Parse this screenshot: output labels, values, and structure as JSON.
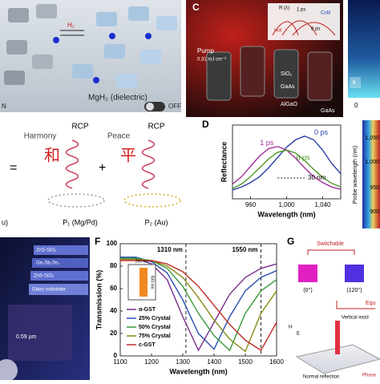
{
  "panels": {
    "a": {
      "state": "MgH₂ (dielectric)",
      "off": "OFF",
      "on": "N",
      "gas": "H₂"
    },
    "b": {
      "rcp1": "RCP",
      "rcp2": "RCP",
      "word1": "Harmony",
      "word2": "Peace",
      "char1": "和",
      "char2": "平",
      "eq": "=",
      "plus": "+",
      "p1": "P₁ (Mg/Pd)",
      "p2": "P₂ (Au)",
      "p0": "u)"
    },
    "c": {
      "label": "C",
      "pump": "Pump",
      "fluence": "0.31 mJ cm⁻²",
      "sio2": "SiO₂",
      "gaas1": "GaAs",
      "algao": "AlGaO",
      "gaas2": "GaAs",
      "t1": "1 ps",
      "t6": "6 ps",
      "hot": "Hot",
      "cold": "Cold",
      "r": "R (λ)"
    },
    "cbar": {
      "k": "k",
      "zero": "0",
      "title": "Probe wavelength (nm)",
      "ticks": [
        "1,050",
        "1,000",
        "950",
        "900"
      ]
    },
    "e": {
      "l1": "ZnS-SiO₂",
      "l2": "Ge₂Sb₂Te₅",
      "l3": "ZnS-SiO₂",
      "l4": "Glass substrate",
      "d": "0.59 μm"
    },
    "g": {
      "label": "G",
      "switch": "Switchable",
      "a0": "(0°)",
      "a120": "(120°)",
      "equ": "Equ",
      "vert": "Vertical incid",
      "normal": "Normal reflection",
      "h": "H",
      "e": "E",
      "phase": "Phase"
    }
  },
  "chart_data": [
    {
      "type": "line",
      "label": "D",
      "xlabel": "Wavelength (nm)",
      "ylabel": "Reflectance",
      "legend": "inline",
      "x": [
        940,
        950,
        960,
        970,
        980,
        990,
        1000,
        1010,
        1020,
        1030,
        1040,
        1050,
        1060
      ],
      "xlim": [
        940,
        1060
      ],
      "ylim": [
        0,
        1
      ],
      "xticks": [
        960,
        {
          "value": 1000,
          "label": "1,000"
        },
        {
          "value": 1040,
          "label": "1,040"
        }
      ],
      "annotation": "30 nm",
      "series": [
        {
          "name": "0 ps",
          "color": "#2b3ea8",
          "values": [
            0.12,
            0.16,
            0.22,
            0.3,
            0.42,
            0.56,
            0.7,
            0.8,
            0.85,
            0.8,
            0.66,
            0.48,
            0.34
          ]
        },
        {
          "name": "1 ps",
          "color": "#a0309a",
          "values": [
            0.2,
            0.3,
            0.44,
            0.58,
            0.68,
            0.71,
            0.66,
            0.55,
            0.42,
            0.3,
            0.22,
            0.16,
            0.13
          ]
        },
        {
          "name": "6 ps",
          "color": "#4e9a2a",
          "values": [
            0.14,
            0.2,
            0.3,
            0.42,
            0.54,
            0.63,
            0.66,
            0.62,
            0.52,
            0.4,
            0.29,
            0.21,
            0.16
          ]
        }
      ]
    },
    {
      "type": "line",
      "label": "F",
      "xlabel": "Wavelength (nm)",
      "ylabel": "Transmission (%)",
      "legend": "lower left",
      "x": [
        1100,
        1150,
        1200,
        1250,
        1300,
        1350,
        1400,
        1450,
        1500,
        1550,
        1600
      ],
      "xlim": [
        1100,
        1600
      ],
      "ylim": [
        0,
        100
      ],
      "xticks": [
        1100,
        1200,
        1300,
        1400,
        1500,
        1600
      ],
      "yticks": [
        0,
        20,
        40,
        60,
        80,
        100
      ],
      "vlines": [
        {
          "value": 1310,
          "label": "1310 nm"
        },
        {
          "value": 1550,
          "label": "1550 nm"
        }
      ],
      "inset_labels": [
        "260 nm",
        "500 nm"
      ],
      "series": [
        {
          "name": "α-GST",
          "color": "#7a2f8f",
          "values": [
            88,
            87,
            82,
            68,
            35,
            5,
            30,
            55,
            70,
            78,
            82
          ]
        },
        {
          "name": "25% Crystal",
          "color": "#2a4fb0",
          "values": [
            88,
            88,
            84,
            74,
            50,
            20,
            6,
            35,
            58,
            70,
            76
          ]
        },
        {
          "name": "50% Crystal",
          "color": "#3a9a3a",
          "values": [
            87,
            87,
            85,
            78,
            62,
            38,
            18,
            5,
            38,
            58,
            68
          ]
        },
        {
          "name": "75% Crystal",
          "color": "#8a8a1a",
          "values": [
            86,
            86,
            85,
            80,
            70,
            52,
            32,
            15,
            4,
            38,
            58
          ]
        },
        {
          "name": "c-GST",
          "color": "#c0302a",
          "values": [
            85,
            85,
            85,
            82,
            75,
            62,
            45,
            28,
            14,
            5,
            30
          ]
        }
      ]
    }
  ]
}
